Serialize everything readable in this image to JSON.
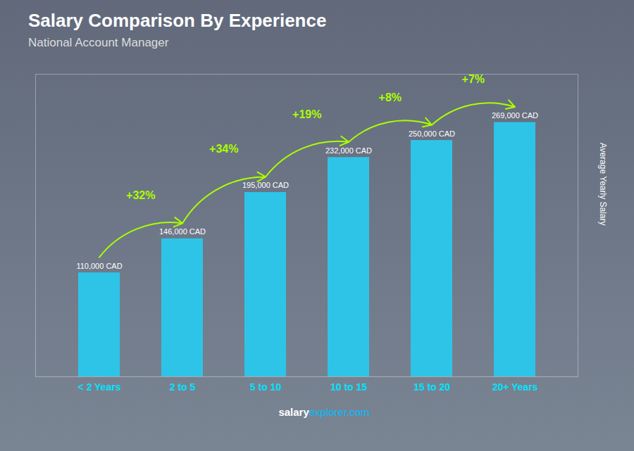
{
  "chart_data": {
    "type": "bar",
    "title": "Salary Comparison By Experience",
    "subtitle": "National Account Manager",
    "categories": [
      "< 2 Years",
      "2 to 5",
      "5 to 10",
      "10 to 15",
      "15 to 20",
      "20+ Years"
    ],
    "values": [
      110000,
      146000,
      195000,
      232000,
      250000,
      269000
    ],
    "value_labels": [
      "110,000 CAD",
      "146,000 CAD",
      "195,000 CAD",
      "232,000 CAD",
      "250,000 CAD",
      "269,000 CAD"
    ],
    "data_labels": true,
    "color": "#2EC4E8",
    "ylabel": "Average Yearly Salary",
    "ylim": [
      0,
      320000
    ],
    "tick_labels": "x",
    "grid": false,
    "annotations": [
      {
        "text": "+32%",
        "from": "< 2 Years",
        "to": "2 to 5",
        "color": "#AAFF00"
      },
      {
        "text": "+34%",
        "from": "2 to 5",
        "to": "5 to 10",
        "color": "#AAFF00"
      },
      {
        "text": "+19%",
        "from": "5 to 10",
        "to": "10 to 15",
        "color": "#AAFF00"
      },
      {
        "text": "+8%",
        "from": "10 to 15",
        "to": "15 to 20",
        "color": "#AAFF00"
      },
      {
        "text": "+7%",
        "from": "15 to 20",
        "to": "20+ Years",
        "color": "#AAFF00"
      }
    ],
    "watermark": [
      "salary",
      "explorer.com"
    ]
  }
}
